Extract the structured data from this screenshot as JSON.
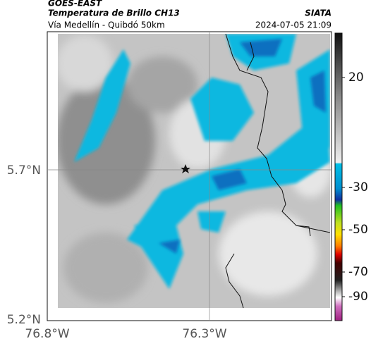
{
  "header": {
    "source": "GOES-EAST",
    "product": "Temperatura de Brillo CH13",
    "route": "Vía Medellín - Quibdó 50km",
    "agency": "SIATA",
    "datetime": "2024-07-05 21:09"
  },
  "map": {
    "lat_labels": [
      "5.7°N",
      "5.2°N"
    ],
    "lon_labels": [
      "76.8°W",
      "76.3°W"
    ]
  },
  "colorbar": {
    "ticks": [
      20,
      -30,
      -50,
      -70,
      -90
    ]
  }
}
